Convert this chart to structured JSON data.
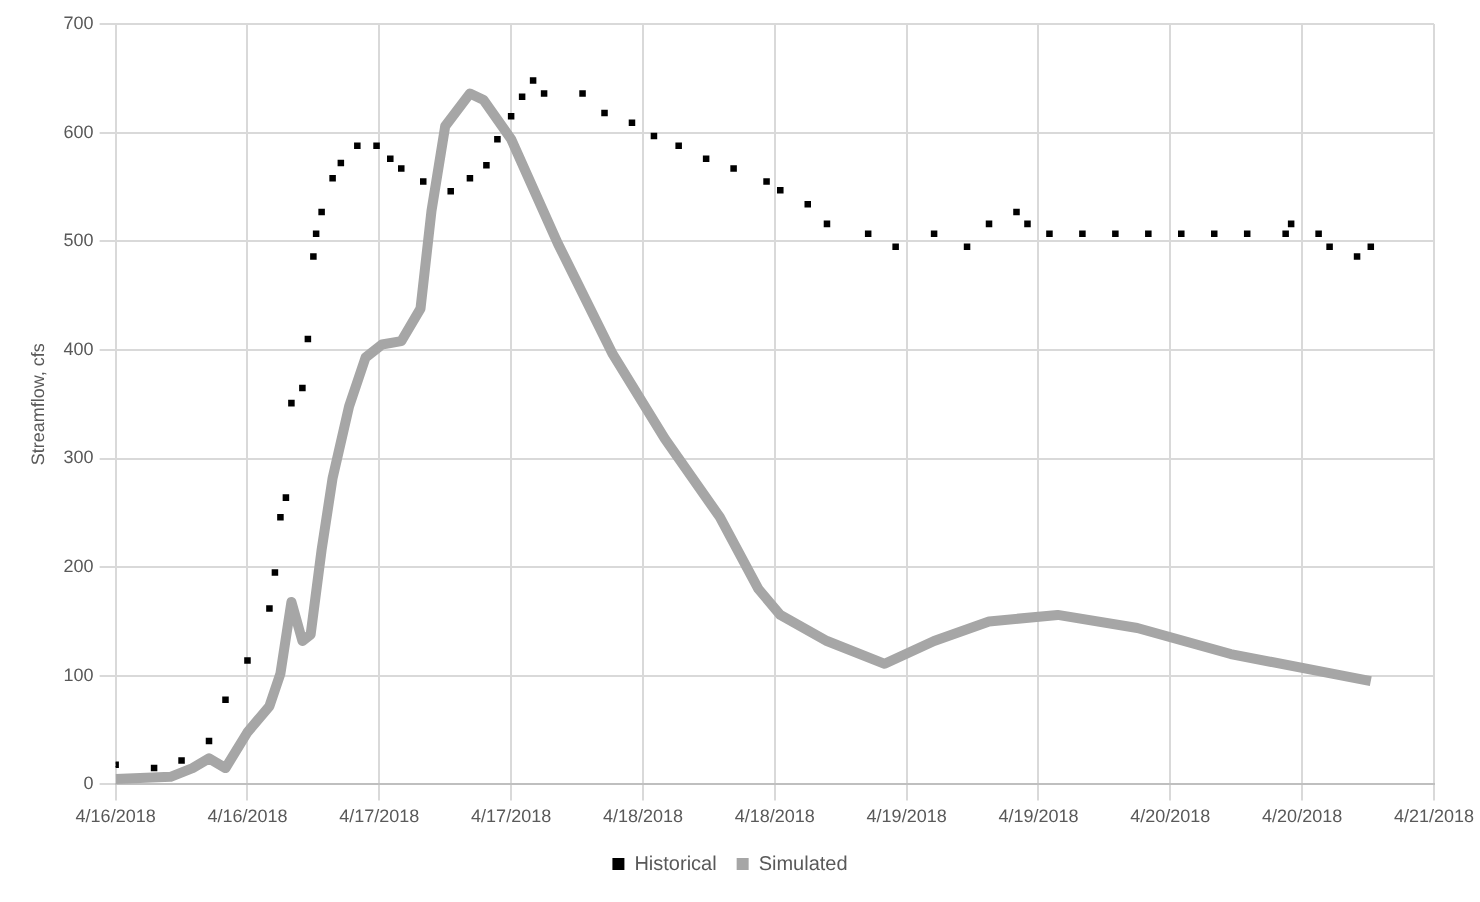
{
  "chart_data": {
    "type": "scatter",
    "ylabel": "Streamflow, cfs",
    "xlim": [
      "2018-04-16T00:00",
      "2018-04-21T00:00"
    ],
    "xticks": [
      {
        "value": "2018-04-16T00:00",
        "label": "4/16/2018"
      },
      {
        "value": "2018-04-16T12:00",
        "label": "4/16/2018"
      },
      {
        "value": "2018-04-17T00:00",
        "label": "4/17/2018"
      },
      {
        "value": "2018-04-17T12:00",
        "label": "4/17/2018"
      },
      {
        "value": "2018-04-18T00:00",
        "label": "4/18/2018"
      },
      {
        "value": "2018-04-18T12:00",
        "label": "4/18/2018"
      },
      {
        "value": "2018-04-19T00:00",
        "label": "4/19/2018"
      },
      {
        "value": "2018-04-19T12:00",
        "label": "4/19/2018"
      },
      {
        "value": "2018-04-20T00:00",
        "label": "4/20/2018"
      },
      {
        "value": "2018-04-20T12:00",
        "label": "4/20/2018"
      },
      {
        "value": "2018-04-21T00:00",
        "label": "4/21/2018"
      }
    ],
    "ylim": [
      0,
      700
    ],
    "yticks": [
      0,
      100,
      200,
      300,
      400,
      500,
      600,
      700
    ],
    "grid": true,
    "legend": "bottom",
    "series": [
      {
        "name": "Historical",
        "type": "scatter",
        "marker": "square",
        "color": "#000000",
        "x": [
          "2018-04-16T00:00",
          "2018-04-16T03:30",
          "2018-04-16T06:00",
          "2018-04-16T08:30",
          "2018-04-16T10:00",
          "2018-04-16T12:00",
          "2018-04-16T14:00",
          "2018-04-16T14:30",
          "2018-04-16T15:00",
          "2018-04-16T15:30",
          "2018-04-16T16:00",
          "2018-04-16T17:00",
          "2018-04-16T17:30",
          "2018-04-16T18:00",
          "2018-04-16T18:15",
          "2018-04-16T18:45",
          "2018-04-16T19:45",
          "2018-04-16T20:30",
          "2018-04-16T22:00",
          "2018-04-16T23:45",
          "2018-04-17T01:00",
          "2018-04-17T02:00",
          "2018-04-17T04:00",
          "2018-04-17T06:30",
          "2018-04-17T08:15",
          "2018-04-17T09:45",
          "2018-04-17T10:45",
          "2018-04-17T12:00",
          "2018-04-17T13:00",
          "2018-04-17T14:00",
          "2018-04-17T15:00",
          "2018-04-17T18:30",
          "2018-04-17T20:30",
          "2018-04-17T23:00",
          "2018-04-18T01:00",
          "2018-04-18T03:15",
          "2018-04-18T05:45",
          "2018-04-18T08:15",
          "2018-04-18T11:15",
          "2018-04-18T12:30",
          "2018-04-18T15:00",
          "2018-04-18T16:45",
          "2018-04-18T20:30",
          "2018-04-18T23:00",
          "2018-04-19T02:30",
          "2018-04-19T05:30",
          "2018-04-19T07:30",
          "2018-04-19T10:00",
          "2018-04-19T11:00",
          "2018-04-19T13:00",
          "2018-04-19T16:00",
          "2018-04-19T19:00",
          "2018-04-19T22:00",
          "2018-04-20T01:00",
          "2018-04-20T04:00",
          "2018-04-20T07:00",
          "2018-04-20T10:30",
          "2018-04-20T11:00",
          "2018-04-20T13:30",
          "2018-04-20T14:30",
          "2018-04-20T17:00",
          "2018-04-20T18:15"
        ],
        "values": [
          18,
          15,
          22,
          40,
          78,
          114,
          162,
          195,
          246,
          264,
          351,
          365,
          410,
          486,
          507,
          527,
          558,
          572,
          588,
          588,
          576,
          567,
          555,
          546,
          558,
          570,
          594,
          615,
          633,
          648,
          636,
          636,
          618,
          609,
          597,
          588,
          576,
          567,
          555,
          547,
          534,
          516,
          507,
          495,
          507,
          495,
          516,
          527,
          516,
          507,
          507,
          507,
          507,
          507,
          507,
          507,
          507,
          516,
          507,
          495,
          486,
          495
        ]
      },
      {
        "name": "Simulated",
        "type": "line",
        "marker": "none",
        "color": "#a6a6a6",
        "x": [
          "2018-04-16T00:00",
          "2018-04-16T05:00",
          "2018-04-16T07:00",
          "2018-04-16T08:30",
          "2018-04-16T10:00",
          "2018-04-16T12:00",
          "2018-04-16T14:00",
          "2018-04-16T15:00",
          "2018-04-16T16:00",
          "2018-04-16T17:00",
          "2018-04-16T17:45",
          "2018-04-16T18:45",
          "2018-04-16T19:45",
          "2018-04-16T21:15",
          "2018-04-16T22:45",
          "2018-04-17T00:15",
          "2018-04-17T02:00",
          "2018-04-17T03:45",
          "2018-04-17T04:45",
          "2018-04-17T06:00",
          "2018-04-17T08:15",
          "2018-04-17T09:30",
          "2018-04-17T12:00",
          "2018-04-17T16:15",
          "2018-04-17T21:15",
          "2018-04-18T02:00",
          "2018-04-18T07:00",
          "2018-04-18T10:30",
          "2018-04-18T12:30",
          "2018-04-18T16:45",
          "2018-04-18T22:00",
          "2018-04-19T02:30",
          "2018-04-19T07:30",
          "2018-04-19T13:45",
          "2018-04-19T21:00",
          "2018-04-20T05:30",
          "2018-04-20T18:15"
        ],
        "values": [
          5,
          7,
          15,
          24,
          15,
          48,
          72,
          102,
          168,
          132,
          138,
          216,
          282,
          348,
          393,
          405,
          408,
          438,
          528,
          606,
          636,
          630,
          594,
          498,
          396,
          318,
          246,
          180,
          156,
          132,
          111,
          132,
          150,
          156,
          144,
          120,
          95
        ]
      }
    ]
  }
}
